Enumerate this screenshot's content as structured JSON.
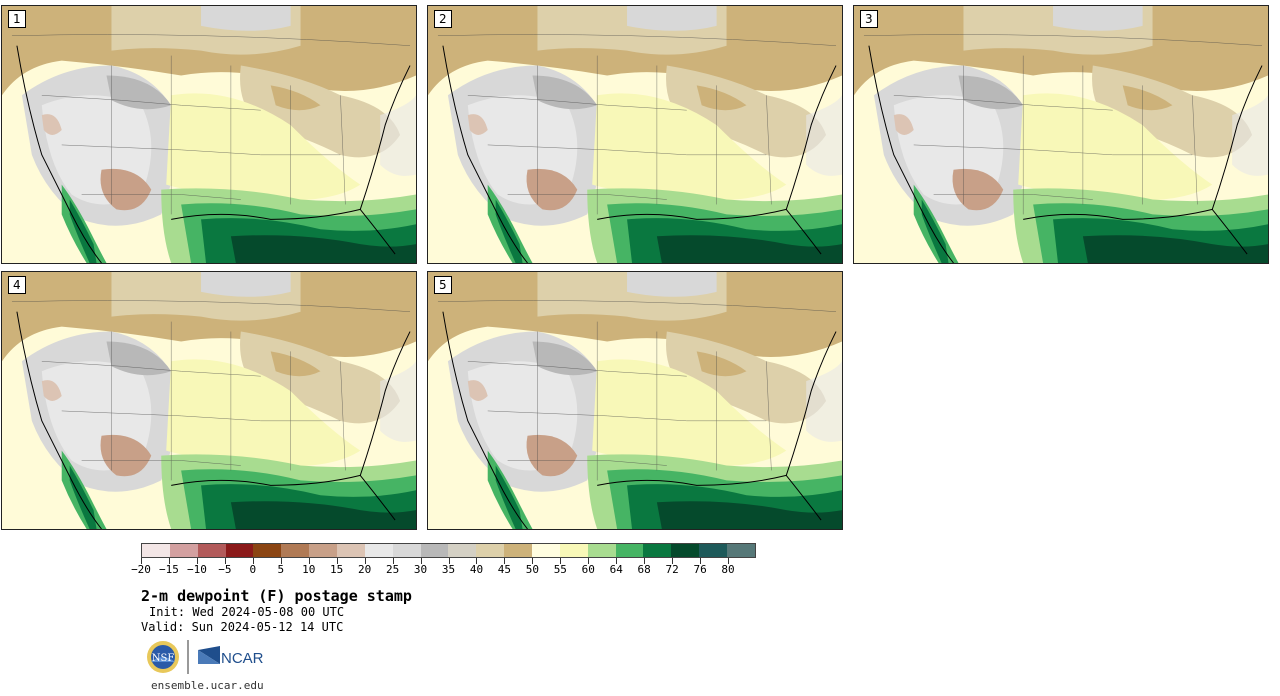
{
  "panels": [
    {
      "label": "1"
    },
    {
      "label": "2"
    },
    {
      "label": "3"
    },
    {
      "label": "4"
    },
    {
      "label": "5"
    }
  ],
  "legend": {
    "colors": [
      "#f3e6e6",
      "#d3a0a0",
      "#b25a5a",
      "#8b1a1a",
      "#8b4513",
      "#b07a55",
      "#c8a088",
      "#dcc4b4",
      "#e8e8e8",
      "#d8d8d8",
      "#b8b8b8",
      "#d4d0c4",
      "#ddd0aa",
      "#cdb27a",
      "#fffde0",
      "#f8f8b8",
      "#a8dc90",
      "#46b464",
      "#0a7840",
      "#054a2c",
      "#1e5a5a",
      "#567878"
    ],
    "tick_labels": [
      "−20",
      "−15",
      "−10",
      "−5",
      "0",
      "5",
      "10",
      "15",
      "20",
      "25",
      "30",
      "35",
      "40",
      "45",
      "50",
      "55",
      "60",
      "64",
      "68",
      "72",
      "76",
      "80"
    ]
  },
  "title": "2-m dewpoint (F) postage stamp",
  "init": "Init: Wed 2024-05-08 00 UTC",
  "valid": "Valid: Sun 2024-05-12 14 UTC",
  "logos": {
    "nsf": "NSF",
    "ncar": "NCAR"
  },
  "footer_url": "ensemble.ucar.edu"
}
